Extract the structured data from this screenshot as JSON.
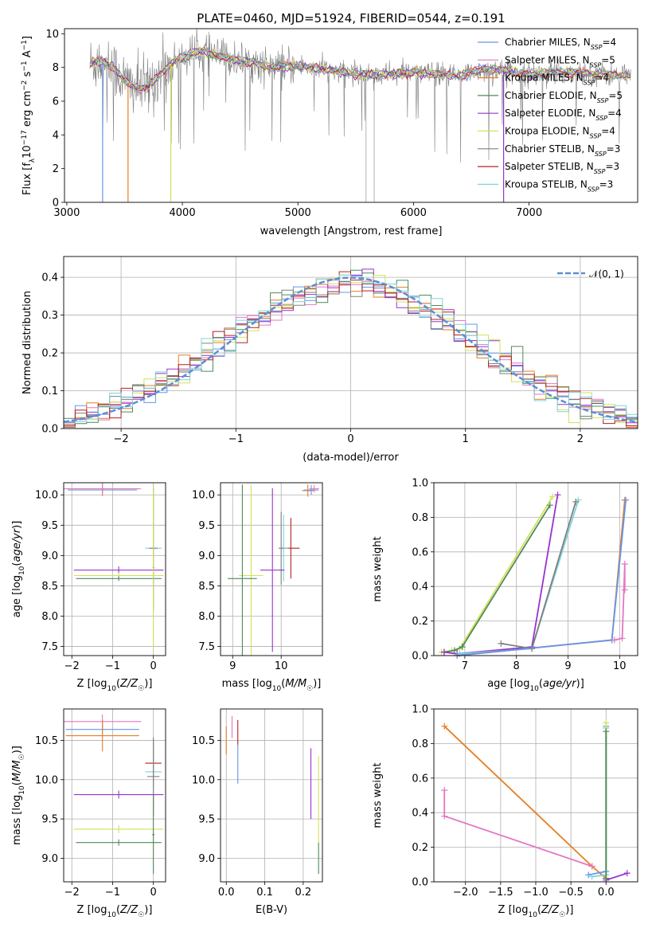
{
  "colors": {
    "chabrier_miles": "#6495ed",
    "salpeter_miles": "#e377c2",
    "kroupa_miles": "#e67e22",
    "chabrier_elodie": "#4f8a5a",
    "salpeter_elodie": "#9932cc",
    "kroupa_elodie": "#d4e157",
    "chabrier_stelib": "#808080",
    "salpeter_stelib": "#b22222",
    "kroupa_stelib": "#7fd3d8",
    "gauss": "#5b8fd6",
    "grid": "#b0b0b0"
  },
  "chart_data": [
    {
      "id": "spectrum",
      "type": "line",
      "title": "PLATE=0460, MJD=51924, FIBERID=0544, z=0.191",
      "xlabel": "wavelength [Angstrom, rest frame]",
      "ylabel": "Flux [f_λ10^-17 erg cm^-2 s^-1 A^-1]",
      "xlim": [
        2980,
        7940
      ],
      "ylim": [
        0,
        10.3
      ],
      "xticks": [
        3000,
        4000,
        5000,
        6000,
        7000
      ],
      "yticks": [
        0,
        2,
        4,
        6,
        8,
        10
      ],
      "grid": false,
      "legend_position": "top-right",
      "legend": [
        {
          "label": "Chabrier MILES, N",
          "sub": "SSP",
          "tail": "=4",
          "color": "chabrier_miles"
        },
        {
          "label": "Salpeter MILES, N",
          "sub": "SSP",
          "tail": "=5",
          "color": "salpeter_miles"
        },
        {
          "label": "Kroupa MILES, N",
          "sub": "SSP",
          "tail": "=4",
          "color": "kroupa_miles"
        },
        {
          "label": "Chabrier ELODIE, N",
          "sub": "SSP",
          "tail": "=5",
          "color": "chabrier_elodie"
        },
        {
          "label": "Salpeter ELODIE, N",
          "sub": "SSP",
          "tail": "=4",
          "color": "salpeter_elodie"
        },
        {
          "label": "Kroupa ELODIE, N",
          "sub": "SSP",
          "tail": "=4",
          "color": "kroupa_elodie"
        },
        {
          "label": "Chabrier STELIB, N",
          "sub": "SSP",
          "tail": "=3",
          "color": "chabrier_stelib"
        },
        {
          "label": "Salpeter STELIB, N",
          "sub": "SSP",
          "tail": "=3",
          "color": "salpeter_stelib"
        },
        {
          "label": "Kroupa STELIB, N",
          "sub": "SSP",
          "tail": "=3",
          "color": "kroupa_stelib"
        }
      ],
      "continuum": [
        [
          3200,
          8.2
        ],
        [
          3300,
          8.4
        ],
        [
          3400,
          8.0
        ],
        [
          3500,
          7.2
        ],
        [
          3600,
          6.8
        ],
        [
          3700,
          6.8
        ],
        [
          3800,
          7.6
        ],
        [
          3900,
          8.2
        ],
        [
          4000,
          8.6
        ],
        [
          4100,
          8.9
        ],
        [
          4200,
          8.9
        ],
        [
          4400,
          8.5
        ],
        [
          4600,
          8.3
        ],
        [
          4800,
          8.0
        ],
        [
          5000,
          8.1
        ],
        [
          5200,
          7.9
        ],
        [
          5400,
          7.7
        ],
        [
          5600,
          7.6
        ],
        [
          5800,
          7.6
        ],
        [
          6000,
          7.7
        ],
        [
          6200,
          7.6
        ],
        [
          6400,
          7.5
        ],
        [
          6600,
          7.9
        ],
        [
          6800,
          7.8
        ],
        [
          7000,
          7.6
        ],
        [
          7200,
          7.7
        ],
        [
          7400,
          7.7
        ],
        [
          7600,
          7.6
        ],
        [
          7880,
          7.5
        ]
      ],
      "model_drops": [
        {
          "x": 3310,
          "series": "chabrier_miles"
        },
        {
          "x": 3530,
          "series": "kroupa_miles"
        },
        {
          "x": 3900,
          "series": "kroupa_elodie"
        },
        {
          "x": 6780,
          "series": "salpeter_elodie"
        }
      ]
    },
    {
      "id": "residuals",
      "type": "histogram",
      "xlabel": "(data-model)/error",
      "ylabel": "Normed distribution",
      "xlim": [
        -2.5,
        2.5
      ],
      "ylim": [
        0,
        0.455
      ],
      "xticks": [
        -2,
        -1,
        0,
        1,
        2
      ],
      "yticks": [
        0.0,
        0.1,
        0.2,
        0.3,
        0.4
      ],
      "grid": true,
      "legend_position": "top-right",
      "legend": [
        {
          "label": "𝒩(0, 1)",
          "style": "dashed",
          "color": "gauss"
        }
      ],
      "bin_width": 0.1
    },
    {
      "id": "age_vs_Z",
      "type": "errorbar",
      "xlabel": "Z [log10(Z/Z☉)]",
      "ylabel": "age  [log10(age/yr)]",
      "xlim": [
        -2.2,
        0.3
      ],
      "ylim": [
        7.35,
        10.2
      ],
      "xticks": [
        -2,
        -1,
        0
      ],
      "yticks": [
        7.5,
        8.0,
        8.5,
        9.0,
        9.5,
        10.0
      ],
      "grid": true,
      "points": [
        {
          "x": -1.25,
          "y": 10.1,
          "xerr": 0.9,
          "yerr": 0.12,
          "color": "kroupa_miles"
        },
        {
          "x": -1.25,
          "y": 10.08,
          "xerr": 0.85,
          "yerr": 0.05,
          "color": "chabrier_miles"
        },
        {
          "x": -1.25,
          "y": 10.1,
          "xerr": 0.95,
          "yerr": 0.08,
          "color": "salpeter_miles"
        },
        {
          "x": 0.0,
          "y": 9.12,
          "xerr": 0.2,
          "yerr": 1.05,
          "color": "kroupa_stelib"
        },
        {
          "x": 0.0,
          "y": 9.12,
          "xerr": 0.1,
          "yerr": 1.0,
          "color": "chabrier_stelib"
        },
        {
          "x": -0.85,
          "y": 8.76,
          "xerr": 1.1,
          "yerr": 0.06,
          "color": "salpeter_elodie"
        },
        {
          "x": -0.85,
          "y": 8.67,
          "xerr": 1.1,
          "yerr": 0.05,
          "color": "kroupa_elodie"
        },
        {
          "x": -0.85,
          "y": 8.62,
          "xerr": 1.05,
          "yerr": 0.04,
          "color": "chabrier_elodie"
        },
        {
          "x": 0.0,
          "y": 8.8,
          "xerr": 0.04,
          "yerr": 1.35,
          "color": "kroupa_elodie"
        }
      ]
    },
    {
      "id": "age_vs_mass",
      "type": "errorbar",
      "xlabel": "mass [log10(M/M☉)]",
      "ylabel": "",
      "xlim": [
        8.75,
        10.85
      ],
      "ylim": [
        7.35,
        10.2
      ],
      "xticks": [
        9,
        10
      ],
      "yticks": [
        7.5,
        8.0,
        8.5,
        9.0,
        9.5,
        10.0
      ],
      "grid": true,
      "points": [
        {
          "x": 10.55,
          "y": 10.07,
          "xerr": 0.12,
          "yerr": 0.1,
          "color": "kroupa_miles"
        },
        {
          "x": 10.62,
          "y": 10.08,
          "xerr": 0.15,
          "yerr": 0.08,
          "color": "chabrier_miles"
        },
        {
          "x": 10.68,
          "y": 10.1,
          "xerr": 0.1,
          "yerr": 0.06,
          "color": "salpeter_miles"
        },
        {
          "x": 10.2,
          "y": 9.12,
          "xerr": 0.18,
          "yerr": 0.5,
          "color": "salpeter_stelib"
        },
        {
          "x": 10.05,
          "y": 9.12,
          "xerr": 0.1,
          "yerr": 0.55,
          "color": "kroupa_stelib"
        },
        {
          "x": 10.0,
          "y": 9.12,
          "xerr": 0.05,
          "yerr": 0.6,
          "color": "chabrier_stelib"
        },
        {
          "x": 9.82,
          "y": 8.76,
          "xerr": 0.25,
          "yerr": 1.35,
          "color": "salpeter_elodie"
        },
        {
          "x": 9.38,
          "y": 8.67,
          "xerr": 0.25,
          "yerr": 1.5,
          "color": "kroupa_elodie"
        },
        {
          "x": 9.2,
          "y": 8.62,
          "xerr": 0.3,
          "yerr": 1.55,
          "color": "chabrier_elodie"
        }
      ]
    },
    {
      "id": "weight_vs_age",
      "type": "line",
      "xlabel": "age  [log10(age/yr)]",
      "ylabel": "mass weight",
      "xlim": [
        6.4,
        10.35
      ],
      "ylim": [
        0,
        1.0
      ],
      "xticks": [
        7,
        8,
        9,
        10
      ],
      "yticks": [
        0.0,
        0.2,
        0.4,
        0.6,
        0.8,
        1.0
      ],
      "grid": true,
      "series": [
        {
          "color": "kroupa_elodie",
          "points": [
            [
              6.55,
              0.02
            ],
            [
              6.75,
              0.03
            ],
            [
              6.9,
              0.04
            ],
            [
              8.7,
              0.92
            ]
          ]
        },
        {
          "color": "chabrier_elodie",
          "points": [
            [
              6.6,
              0.02
            ],
            [
              6.8,
              0.03
            ],
            [
              6.95,
              0.05
            ],
            [
              8.65,
              0.87
            ]
          ]
        },
        {
          "color": "salpeter_elodie",
          "points": [
            [
              6.6,
              0.02
            ],
            [
              6.85,
              0.01
            ],
            [
              8.3,
              0.05
            ],
            [
              8.8,
              0.93
            ]
          ]
        },
        {
          "color": "kroupa_stelib",
          "points": [
            [
              6.9,
              0.01
            ],
            [
              8.3,
              0.04
            ],
            [
              9.2,
              0.9
            ]
          ]
        },
        {
          "color": "chabrier_stelib",
          "points": [
            [
              7.7,
              0.07
            ],
            [
              8.3,
              0.04
            ],
            [
              9.15,
              0.89
            ]
          ]
        },
        {
          "color": "kroupa_miles",
          "points": [
            [
              6.85,
              0.0
            ],
            [
              9.85,
              0.09
            ],
            [
              10.1,
              0.9
            ]
          ]
        },
        {
          "color": "chabrier_miles",
          "points": [
            [
              6.85,
              0.0
            ],
            [
              9.85,
              0.09
            ],
            [
              10.12,
              0.9
            ]
          ]
        },
        {
          "color": "salpeter_miles",
          "points": [
            [
              9.9,
              0.09
            ],
            [
              10.05,
              0.1
            ],
            [
              10.1,
              0.53
            ],
            [
              10.1,
              0.38
            ]
          ]
        }
      ]
    },
    {
      "id": "mass_vs_Z",
      "type": "errorbar",
      "xlabel": "Z [log10(Z/Z☉)]",
      "ylabel": "mass [log10(M/M☉)]",
      "xlim": [
        -2.2,
        0.3
      ],
      "ylim": [
        8.7,
        10.9
      ],
      "xticks": [
        -2,
        -1,
        0
      ],
      "yticks": [
        9.0,
        9.5,
        10.0,
        10.5
      ],
      "grid": true,
      "points": [
        {
          "x": -1.25,
          "y": 10.74,
          "xerr": 0.95,
          "yerr": 0.09,
          "color": "salpeter_miles"
        },
        {
          "x": -1.25,
          "y": 10.64,
          "xerr": 0.9,
          "yerr": 0.06,
          "color": "chabrier_miles"
        },
        {
          "x": -1.25,
          "y": 10.56,
          "xerr": 0.9,
          "yerr": 0.2,
          "color": "kroupa_miles"
        },
        {
          "x": 0.0,
          "y": 10.21,
          "xerr": 0.2,
          "yerr": 0.3,
          "color": "salpeter_stelib"
        },
        {
          "x": 0.0,
          "y": 10.1,
          "xerr": 0.2,
          "yerr": 0.4,
          "color": "kroupa_stelib"
        },
        {
          "x": 0.0,
          "y": 10.04,
          "xerr": 0.15,
          "yerr": 0.5,
          "color": "chabrier_stelib"
        },
        {
          "x": -0.85,
          "y": 9.81,
          "xerr": 1.1,
          "yerr": 0.05,
          "color": "salpeter_elodie"
        },
        {
          "x": -0.85,
          "y": 9.37,
          "xerr": 1.1,
          "yerr": 0.05,
          "color": "kroupa_elodie"
        },
        {
          "x": -0.85,
          "y": 9.2,
          "xerr": 1.05,
          "yerr": 0.04,
          "color": "chabrier_elodie"
        },
        {
          "x": 0.0,
          "y": 9.3,
          "xerr": 0.03,
          "yerr": 0.5,
          "color": "chabrier_elodie"
        }
      ]
    },
    {
      "id": "mass_vs_ebv",
      "type": "errorbar",
      "xlabel": "E(B-V)",
      "ylabel": "",
      "xlim": [
        -0.015,
        0.25
      ],
      "ylim": [
        8.7,
        10.9
      ],
      "xticks": [
        0.0,
        0.1,
        0.2
      ],
      "yticks": [
        9.0,
        9.5,
        10.0,
        10.5
      ],
      "grid": true,
      "points": [
        {
          "x": 0.0,
          "y": 10.5,
          "xerr": 0.0,
          "yerr": 0.18,
          "color": "kroupa_miles"
        },
        {
          "x": 0.015,
          "y": 10.67,
          "xerr": 0.0,
          "yerr": 0.14,
          "color": "salpeter_miles"
        },
        {
          "x": 0.03,
          "y": 10.6,
          "xerr": 0.0,
          "yerr": 0.16,
          "color": "salpeter_stelib"
        },
        {
          "x": 0.03,
          "y": 10.2,
          "xerr": 0.0,
          "yerr": 0.25,
          "color": "chabrier_miles"
        },
        {
          "x": 0.22,
          "y": 9.95,
          "xerr": 0.0,
          "yerr": 0.45,
          "color": "salpeter_elodie"
        },
        {
          "x": 0.24,
          "y": 9.75,
          "xerr": 0.0,
          "yerr": 0.55,
          "color": "kroupa_elodie"
        },
        {
          "x": 0.24,
          "y": 9.0,
          "xerr": 0.0,
          "yerr": 0.2,
          "color": "chabrier_elodie"
        }
      ]
    },
    {
      "id": "weight_vs_Z",
      "type": "line",
      "xlabel": "Z [log10(Z/Z☉)]",
      "ylabel": "mass weight",
      "xlim": [
        -2.45,
        0.45
      ],
      "ylim": [
        0,
        1.0
      ],
      "xticks": [
        -2.0,
        -1.5,
        -1.0,
        -0.5,
        0.0
      ],
      "yticks": [
        0.0,
        0.2,
        0.4,
        0.6,
        0.8,
        1.0
      ],
      "grid": true,
      "series": [
        {
          "color": "kroupa_miles",
          "points": [
            [
              -2.3,
              0.9
            ],
            [
              -0.2,
              0.09
            ],
            [
              0.0,
              0.02
            ]
          ]
        },
        {
          "color": "salpeter_miles",
          "points": [
            [
              -2.3,
              0.53
            ],
            [
              -2.3,
              0.38
            ],
            [
              -0.2,
              0.09
            ]
          ]
        },
        {
          "color": "chabrier_miles",
          "points": [
            [
              -0.25,
              0.04
            ],
            [
              0.0,
              0.06
            ],
            [
              0.0,
              0.9
            ]
          ]
        },
        {
          "color": "kroupa_stelib",
          "points": [
            [
              -0.2,
              0.03
            ],
            [
              0.0,
              0.04
            ],
            [
              0.0,
              0.89
            ]
          ]
        },
        {
          "color": "kroupa_elodie",
          "points": [
            [
              0.0,
              0.02
            ],
            [
              0.0,
              0.92
            ]
          ]
        },
        {
          "color": "salpeter_elodie",
          "points": [
            [
              0.0,
              0.01
            ],
            [
              0.3,
              0.05
            ]
          ]
        },
        {
          "color": "chabrier_elodie",
          "points": [
            [
              0.0,
              0.02
            ],
            [
              0.0,
              0.87
            ]
          ]
        }
      ]
    }
  ]
}
